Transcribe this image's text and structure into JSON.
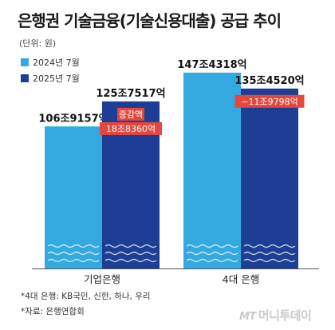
{
  "chart_data": {
    "type": "bar",
    "title": "은행권 기술금융(기술신용대출) 공급 추이",
    "unit_label": "(단위: 원)",
    "categories": [
      "기업은행",
      "4대 은행"
    ],
    "series": [
      {
        "name": "2024년 7월",
        "color": "#33a9e0",
        "values": [
          106.9157,
          147.4318
        ],
        "labels": [
          "106조9157억",
          "147조4318억"
        ]
      },
      {
        "name": "2025년 7월",
        "color": "#1c3f95",
        "values": [
          125.7517,
          135.452
        ],
        "labels": [
          "125조7517억",
          "135조4520억"
        ]
      }
    ],
    "change_annotations": [
      {
        "category": "기업은행",
        "lines": [
          "증감액",
          "18조8360억"
        ],
        "color": "#e5473e"
      },
      {
        "category": "4대 은행",
        "lines": [
          "−11조9798억"
        ],
        "color": "#e5473e"
      }
    ],
    "ylim": [
      0,
      160
    ],
    "grid": false,
    "legend_position": "top-left",
    "xlabel": "",
    "ylabel": ""
  },
  "footnotes": [
    "*4대 은행: KB국민, 신한, 하나, 우리",
    "*자료: 은행연합회"
  ],
  "watermark": {
    "prefix": "MT",
    "text": "머니투데이"
  }
}
